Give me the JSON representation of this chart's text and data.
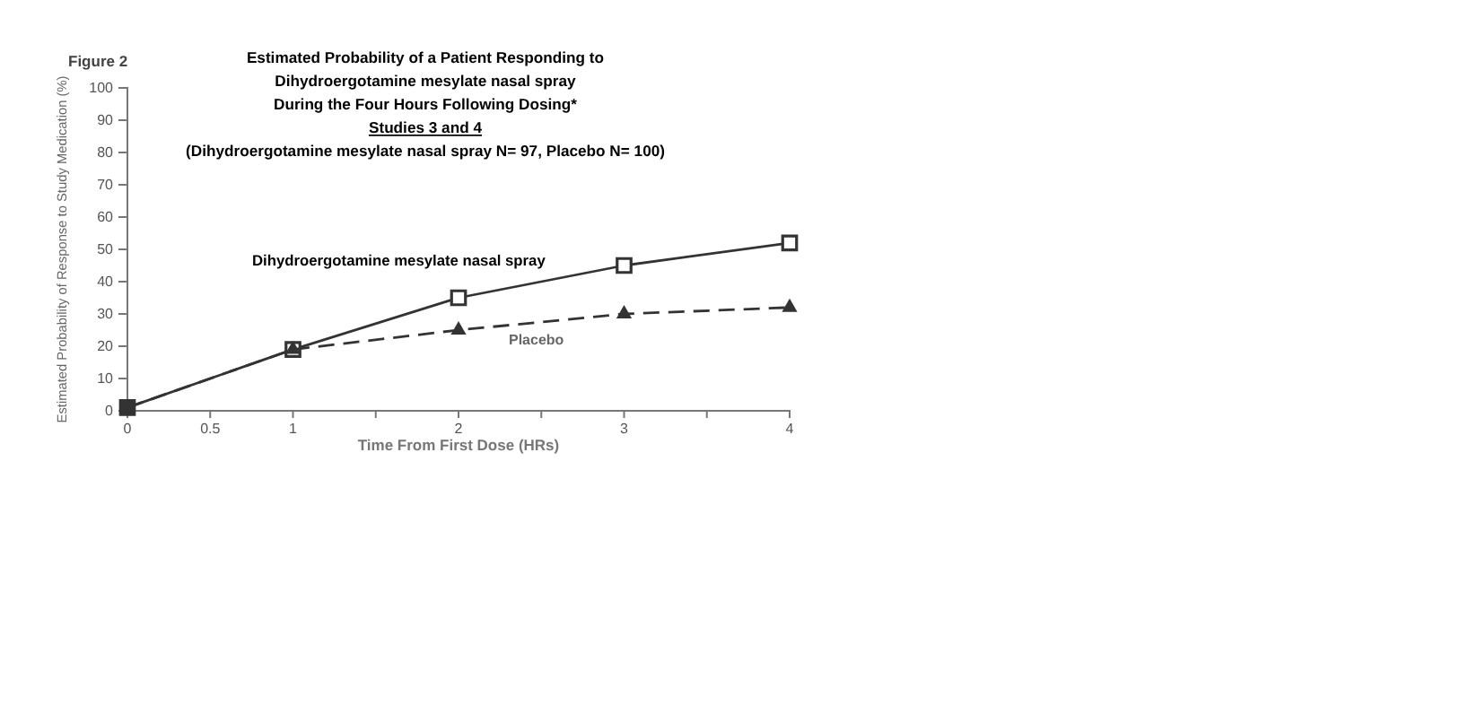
{
  "chart_data": {
    "type": "line",
    "title": "Estimated Probability of a Patient Responding to\nDihydroergotamine mesylate nasal spray\nDuring the Four Hours Following Dosing*\nStudies 3 and 4\n(Dihydroergotamine mesylate nasal spray N= 97, Placebo N= 100)",
    "xlabel": "Time From First Dose (HRs)",
    "ylabel": "Estimated Probability of Response to Study Medication (%)",
    "annotations": [
      "Figure 2"
    ],
    "x": [
      0,
      1,
      2,
      3,
      4
    ],
    "series": [
      {
        "name": "Dihydroergotamine mesylate nasal spray",
        "color": "#333333",
        "values": [
          1,
          19,
          35,
          45,
          52
        ],
        "marker": "square",
        "line_style": "solid"
      },
      {
        "name": "Placebo",
        "color": "#333333",
        "values": [
          1,
          19,
          25,
          30,
          32
        ],
        "marker": "triangle",
        "line_style": "dashed"
      }
    ],
    "xlim": [
      0,
      4
    ],
    "xticks": [
      0,
      0.5,
      1,
      {
        "value": 1.5,
        "label": null
      },
      2,
      {
        "value": 2.5,
        "label": null
      },
      3,
      {
        "value": 3.5,
        "label": null
      },
      4
    ],
    "ylim": [
      0,
      100
    ],
    "yticks": [
      0,
      10,
      20,
      30,
      40,
      50,
      60,
      70,
      80,
      90,
      100
    ],
    "grid": false,
    "legend": false
  }
}
